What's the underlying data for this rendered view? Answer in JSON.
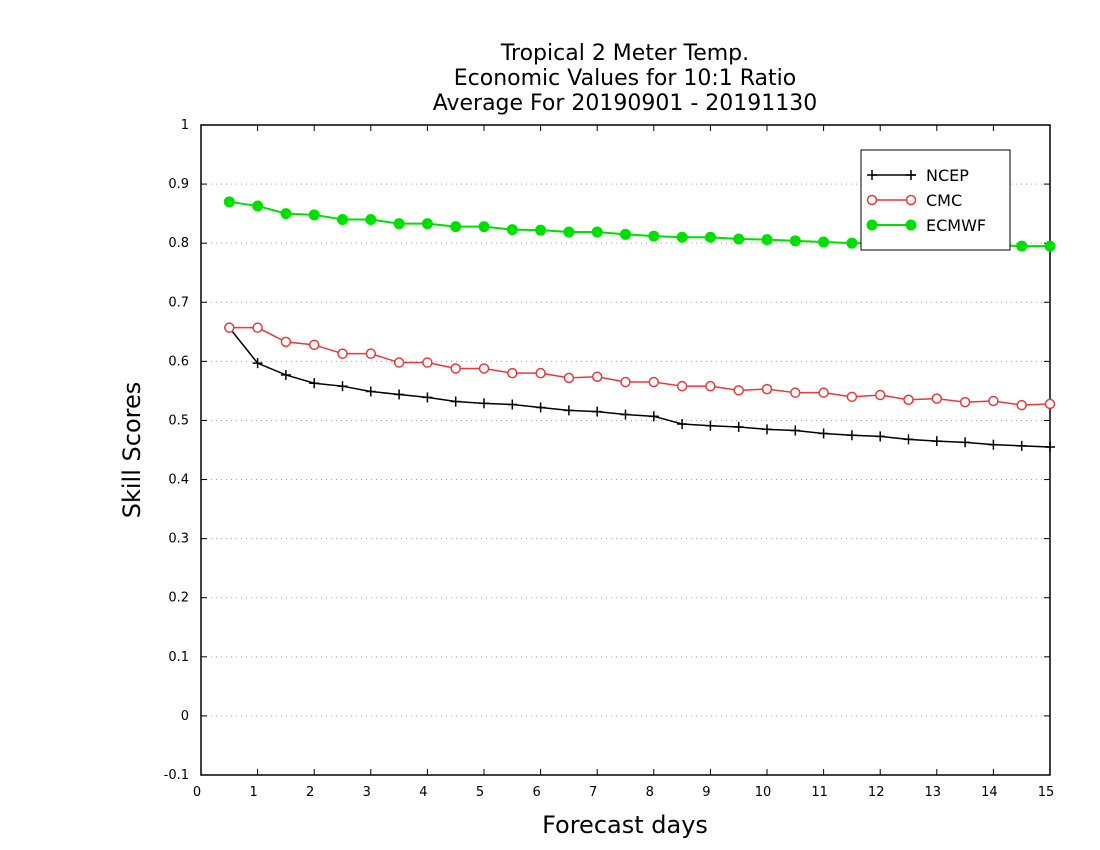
{
  "chart_data": {
    "type": "line",
    "title_lines": [
      "Tropical 2 Meter Temp.",
      "Economic Values for 10:1 Ratio",
      "Average For 20190901 - 20191130"
    ],
    "xlabel": "Forecast days",
    "ylabel": "Skill Scores",
    "xlim": [
      0,
      15
    ],
    "ylim": [
      -0.1,
      1
    ],
    "x_ticks": [
      "0",
      "1",
      "2",
      "3",
      "4",
      "5",
      "6",
      "7",
      "8",
      "9",
      "10",
      "11",
      "12",
      "13",
      "14",
      "15"
    ],
    "y_ticks": [
      "-0.1",
      "0",
      "0.1",
      "0.2",
      "0.3",
      "0.4",
      "0.5",
      "0.6",
      "0.7",
      "0.8",
      "0.9",
      "1"
    ],
    "grid": true,
    "legend_position": "top-right",
    "x": [
      0.5,
      1,
      1.5,
      2,
      2.5,
      3,
      3.5,
      4,
      4.5,
      5,
      5.5,
      6,
      6.5,
      7,
      7.5,
      8,
      8.5,
      9,
      9.5,
      10,
      10.5,
      11,
      11.5,
      12,
      12.5,
      13,
      13.5,
      14,
      14.5,
      15
    ],
    "series": [
      {
        "name": "NCEP",
        "color": "#000000",
        "marker": "plus",
        "values": [
          0.657,
          0.597,
          0.577,
          0.563,
          0.558,
          0.549,
          0.544,
          0.539,
          0.532,
          0.529,
          0.527,
          0.522,
          0.517,
          0.515,
          0.51,
          0.507,
          0.494,
          0.491,
          0.489,
          0.485,
          0.483,
          0.478,
          0.475,
          0.473,
          0.468,
          0.465,
          0.463,
          0.459,
          0.457,
          0.455
        ]
      },
      {
        "name": "CMC",
        "color": "#e8393c",
        "marker": "open-circle",
        "values": [
          0.657,
          0.657,
          0.633,
          0.628,
          0.613,
          0.613,
          0.598,
          0.598,
          0.588,
          0.588,
          0.58,
          0.58,
          0.572,
          0.574,
          0.565,
          0.565,
          0.558,
          0.558,
          0.551,
          0.553,
          0.547,
          0.547,
          0.54,
          0.543,
          0.535,
          0.537,
          0.531,
          0.533,
          0.526,
          0.528
        ]
      },
      {
        "name": "ECMWF",
        "color": "#00e000",
        "marker": "filled-circle",
        "values": [
          0.87,
          0.863,
          0.85,
          0.848,
          0.84,
          0.84,
          0.833,
          0.833,
          0.828,
          0.828,
          0.823,
          0.822,
          0.819,
          0.819,
          0.815,
          0.812,
          0.81,
          0.81,
          0.807,
          0.806,
          0.804,
          0.802,
          0.8,
          0.8,
          0.799,
          0.798,
          0.797,
          0.797,
          0.795,
          0.795
        ]
      }
    ]
  }
}
